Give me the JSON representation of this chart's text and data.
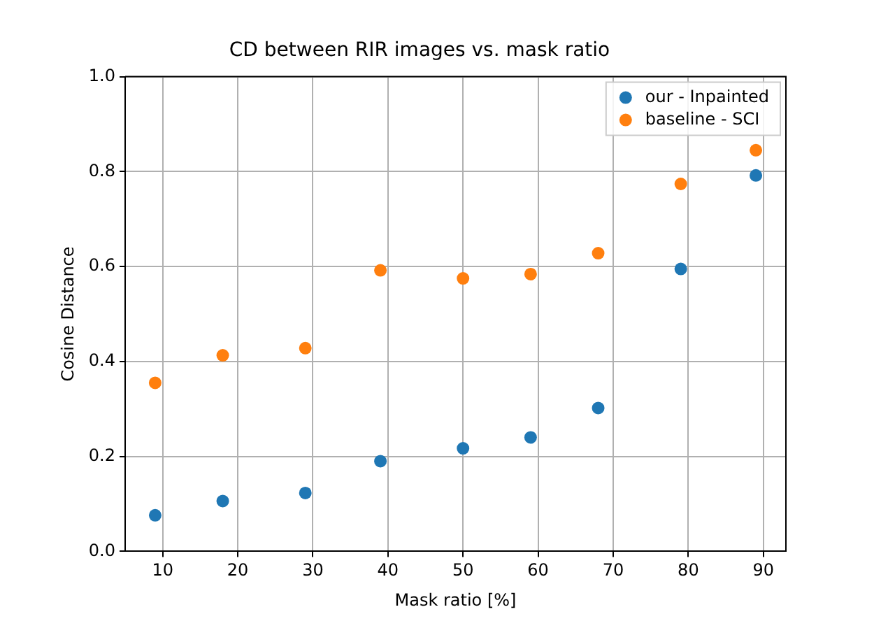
{
  "chart_data": {
    "type": "scatter",
    "title": "CD between RIR images vs. mask ratio",
    "xlabel": "Mask ratio [%]",
    "ylabel": "Cosine Distance",
    "x": [
      9,
      18,
      29,
      39,
      50,
      59,
      68,
      79,
      89
    ],
    "series": [
      {
        "name": "our - Inpainted",
        "color": "#1f77b4",
        "values": [
          0.076,
          0.106,
          0.123,
          0.19,
          0.217,
          0.24,
          0.302,
          0.595,
          0.792
        ]
      },
      {
        "name": "baseline - SCI",
        "color": "#ff7f0e",
        "values": [
          0.355,
          0.413,
          0.428,
          0.592,
          0.575,
          0.584,
          0.628,
          0.774,
          0.845
        ]
      }
    ],
    "xlim": [
      5,
      93
    ],
    "xticks": [
      10,
      20,
      30,
      40,
      50,
      60,
      70,
      80,
      90
    ],
    "ylim": [
      0,
      1
    ],
    "yticks": [
      {
        "value": 0,
        "label": "0.0"
      },
      0.2,
      0.4,
      0.6,
      0.8,
      {
        "value": 1,
        "label": "1.0"
      }
    ],
    "grid": true,
    "legend": "top right",
    "marker": "circle"
  }
}
